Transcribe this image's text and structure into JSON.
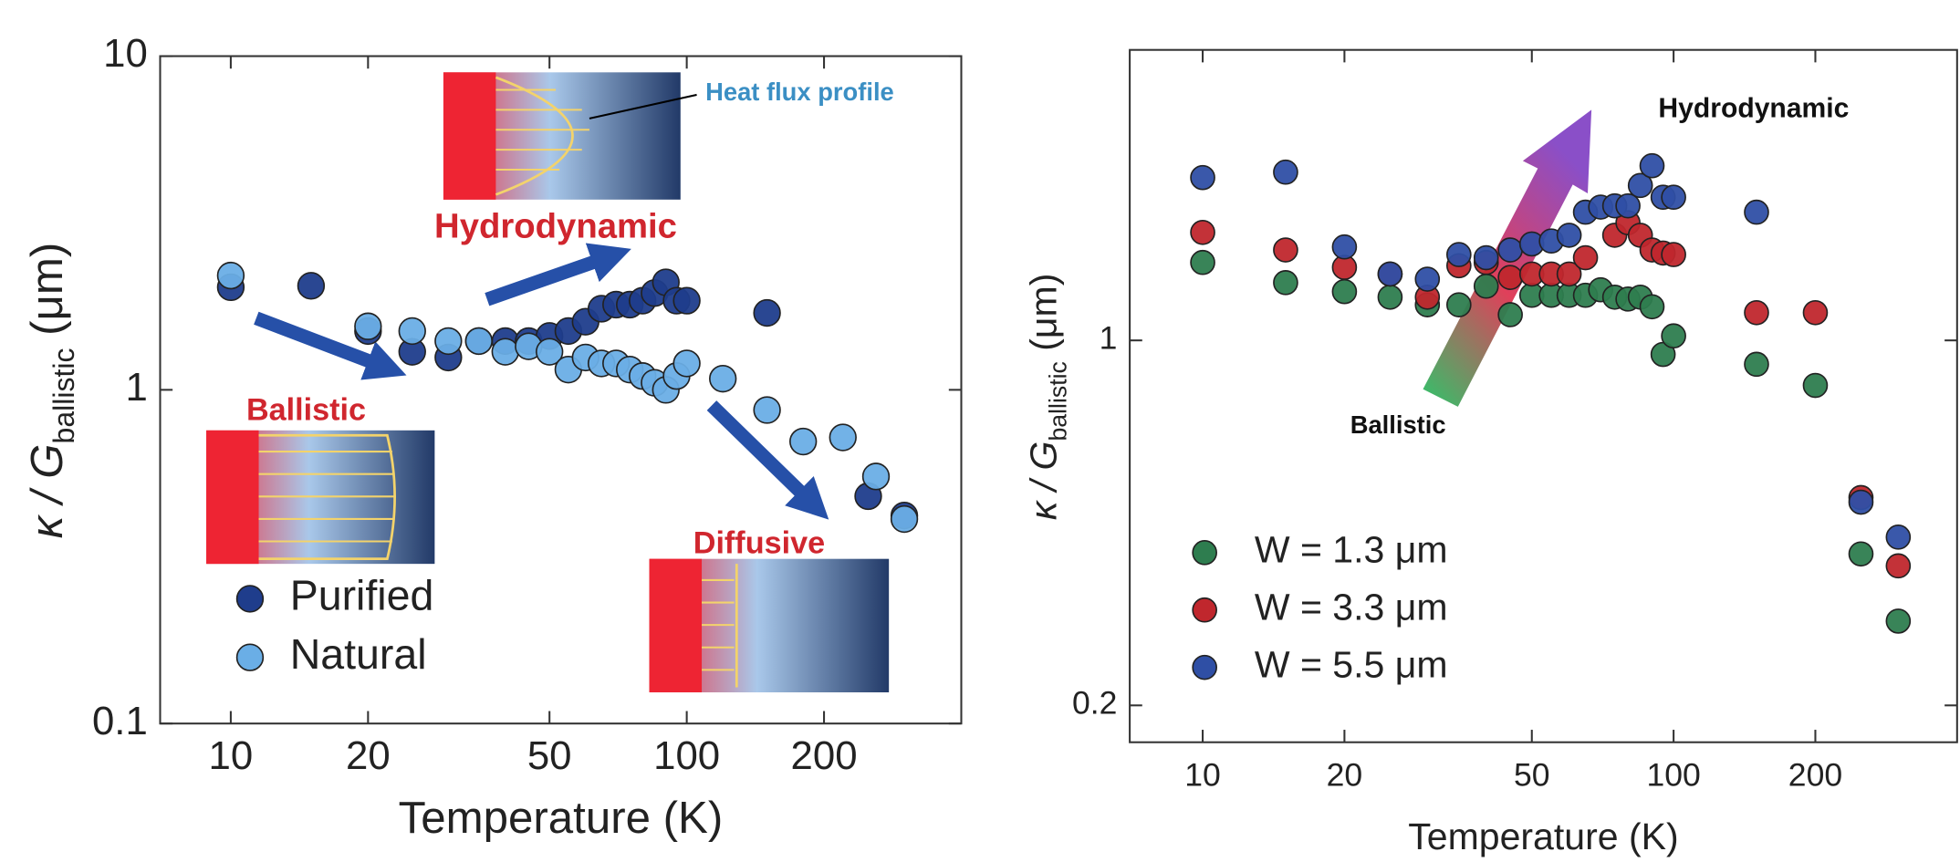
{
  "chart_data": [
    {
      "type": "scatter",
      "log_x": true,
      "log_y": true,
      "xlabel": "Temperature (K)",
      "ylabel_parts": [
        "κ / ",
        "G",
        "ballistic",
        " (μm)"
      ],
      "xlim": [
        7,
        400
      ],
      "ylim": [
        0.1,
        10
      ],
      "xticks": [
        10,
        20,
        50,
        100,
        200
      ],
      "yticks": [
        0.1,
        1,
        10
      ],
      "legend": "lower left",
      "series": [
        {
          "name": "Purified",
          "color": "#1f3d8c",
          "x": [
            10,
            15,
            20,
            25,
            30,
            35,
            40,
            45,
            50,
            55,
            60,
            65,
            70,
            75,
            80,
            85,
            90,
            95,
            100,
            150,
            250,
            300
          ],
          "values": [
            2.03,
            2.05,
            1.5,
            1.3,
            1.25,
            1.4,
            1.4,
            1.4,
            1.45,
            1.5,
            1.6,
            1.75,
            1.8,
            1.8,
            1.85,
            1.95,
            2.1,
            1.85,
            1.85,
            1.7,
            0.48,
            0.42
          ]
        },
        {
          "name": "Natural",
          "color": "#6aaee6",
          "x": [
            10,
            20,
            25,
            30,
            35,
            40,
            45,
            50,
            55,
            60,
            65,
            70,
            75,
            80,
            85,
            90,
            95,
            100,
            120,
            150,
            180,
            220,
            260,
            300
          ],
          "values": [
            2.2,
            1.55,
            1.5,
            1.4,
            1.4,
            1.3,
            1.35,
            1.3,
            1.15,
            1.25,
            1.2,
            1.2,
            1.15,
            1.1,
            1.05,
            1.0,
            1.1,
            1.2,
            1.08,
            0.87,
            0.7,
            0.72,
            0.55,
            0.41
          ]
        }
      ],
      "annotations": [
        "Heat flux profile",
        "Hydrodynamic",
        "Ballistic",
        "Diffusive"
      ]
    },
    {
      "type": "scatter",
      "log_x": true,
      "log_y": true,
      "xlabel": "Temperature (K)",
      "ylabel_parts": [
        "κ / ",
        "G",
        "ballistic",
        " (μm)"
      ],
      "xlim": [
        7,
        400
      ],
      "ylim": [
        0.17,
        3.6
      ],
      "xticks": [
        10,
        20,
        50,
        100,
        200
      ],
      "yticks": [
        0.2,
        1
      ],
      "legend": "lower left",
      "series": [
        {
          "name": "W = 1.3 μm",
          "color": "#2e7d4f",
          "x": [
            10,
            15,
            20,
            25,
            30,
            35,
            40,
            45,
            50,
            55,
            60,
            65,
            70,
            75,
            80,
            85,
            90,
            95,
            100,
            150,
            200,
            250,
            300
          ],
          "values": [
            1.41,
            1.29,
            1.24,
            1.21,
            1.17,
            1.17,
            1.27,
            1.12,
            1.22,
            1.22,
            1.22,
            1.22,
            1.25,
            1.21,
            1.2,
            1.21,
            1.16,
            0.94,
            1.02,
            0.9,
            0.82,
            0.39,
            0.29
          ]
        },
        {
          "name": "W = 3.3 μm",
          "color": "#c0272d",
          "x": [
            10,
            15,
            20,
            25,
            30,
            35,
            40,
            45,
            50,
            55,
            60,
            65,
            75,
            80,
            85,
            90,
            95,
            100,
            150,
            200,
            250,
            300
          ],
          "values": [
            1.61,
            1.49,
            1.38,
            1.34,
            1.21,
            1.39,
            1.41,
            1.32,
            1.34,
            1.34,
            1.34,
            1.44,
            1.59,
            1.68,
            1.59,
            1.49,
            1.47,
            1.46,
            1.13,
            1.13,
            0.5,
            0.37
          ]
        },
        {
          "name": "W = 5.5 μm",
          "color": "#2f4fa5",
          "x": [
            10,
            15,
            20,
            25,
            30,
            35,
            40,
            45,
            50,
            55,
            60,
            65,
            70,
            75,
            80,
            85,
            90,
            95,
            100,
            150,
            250,
            300
          ],
          "values": [
            2.05,
            2.1,
            1.51,
            1.34,
            1.31,
            1.46,
            1.44,
            1.49,
            1.53,
            1.55,
            1.59,
            1.76,
            1.8,
            1.81,
            1.81,
            1.98,
            2.16,
            1.88,
            1.88,
            1.76,
            0.49,
            0.42
          ]
        }
      ],
      "annotations": [
        "Hydrodynamic",
        "Ballistic"
      ]
    }
  ]
}
